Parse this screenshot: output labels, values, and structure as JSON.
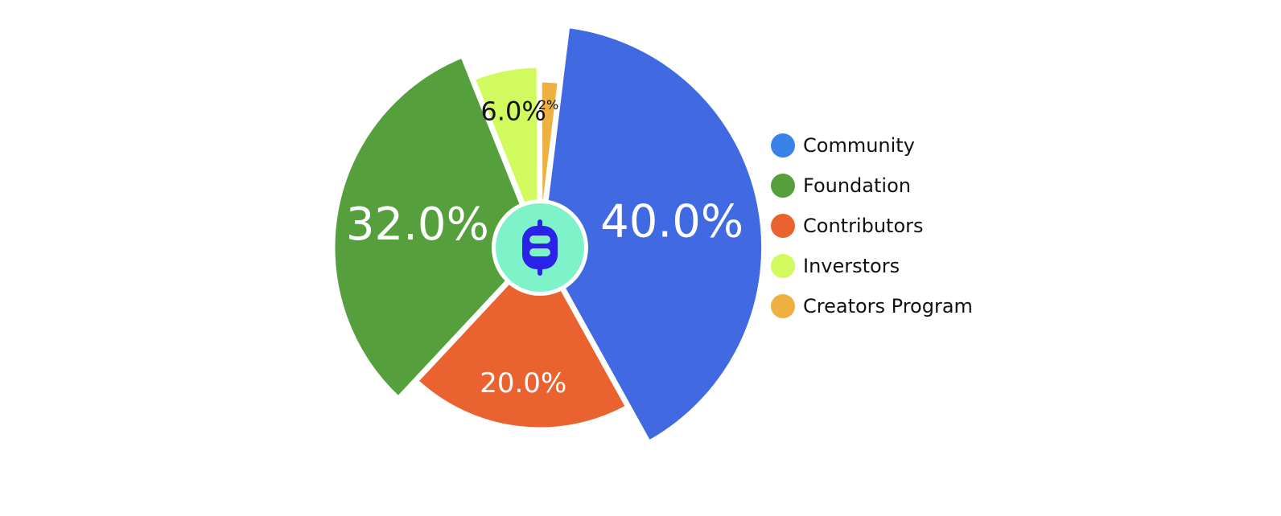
{
  "chart_data": {
    "type": "pie",
    "title": "",
    "slices": [
      {
        "name": "Community",
        "value": 40.0,
        "label": "40.0%",
        "color": "#4169E1",
        "label_color": "#ffffff",
        "radius_scale": 1.08
      },
      {
        "name": "Contributors",
        "value": 20.0,
        "label": "20.0%",
        "color": "#EA6230",
        "label_color": "#ffffff",
        "radius_scale": 0.88
      },
      {
        "name": "Foundation",
        "value": 32.0,
        "label": "32.0%",
        "color": "#559F3D",
        "label_color": "#ffffff",
        "radius_scale": 1.0
      },
      {
        "name": "Inverstors",
        "value": 6.0,
        "label": "6.0%",
        "color": "#D0FA5E",
        "label_color": "#111111",
        "radius_scale": 0.88
      },
      {
        "name": "Creators Program",
        "value": 2.0,
        "label": "2%",
        "color": "#EEB13F",
        "label_color": "#111111",
        "radius_scale": 0.81
      }
    ],
    "legend": {
      "position": "right",
      "items": [
        {
          "name": "Community",
          "color": "#3B82E8"
        },
        {
          "name": "Foundation",
          "color": "#559F3D"
        },
        {
          "name": "Contributors",
          "color": "#EA6230"
        },
        {
          "name": "Inverstors",
          "color": "#D0FA5E"
        },
        {
          "name": "Creators Program",
          "color": "#EEB13F"
        }
      ]
    },
    "center_logo": {
      "icon": "b-coin-logo-icon",
      "background_color": "#7EF2C8",
      "icon_color": "#2A22E8"
    }
  }
}
